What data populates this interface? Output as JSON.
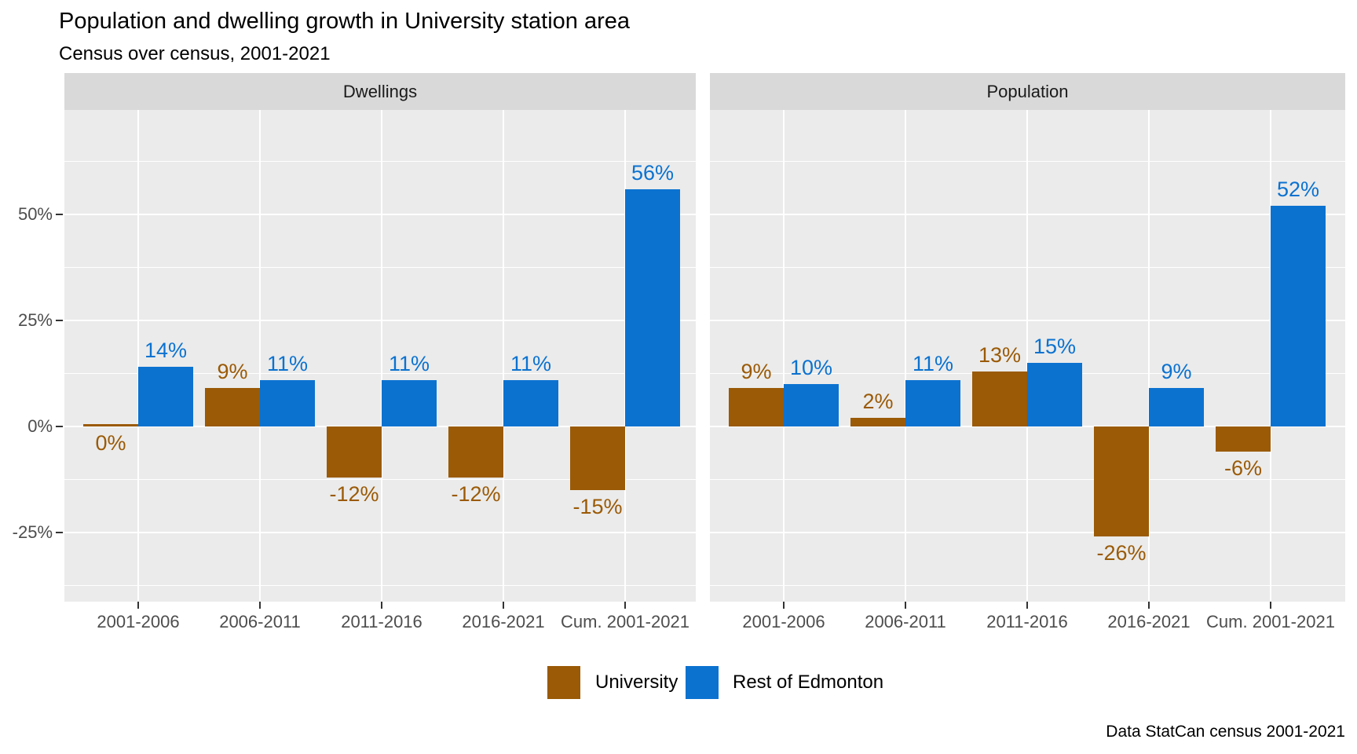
{
  "title": "Population and dwelling growth in University station area",
  "subtitle": "Census over census, 2001-2021",
  "caption": "Data StatCan census 2001-2021",
  "chart_data": {
    "type": "bar",
    "categories": [
      "2001-2006",
      "2006-2011",
      "2011-2016",
      "2016-2021",
      "Cum. 2001-2021"
    ],
    "facets": [
      {
        "label": "Dwellings",
        "series": [
          {
            "name": "University",
            "values": [
              0,
              9,
              -12,
              -12,
              -15
            ]
          },
          {
            "name": "Rest of Edmonton",
            "values": [
              14,
              11,
              11,
              11,
              56
            ]
          }
        ]
      },
      {
        "label": "Population",
        "series": [
          {
            "name": "University",
            "values": [
              9,
              2,
              13,
              -26,
              -6
            ]
          },
          {
            "name": "Rest of Edmonton",
            "values": [
              10,
              11,
              15,
              9,
              52
            ]
          }
        ]
      }
    ],
    "value_label_format": "percent",
    "y_axis": {
      "major_ticks": [
        {
          "label": "50%",
          "value": 50
        },
        {
          "label": "25%",
          "value": 25
        },
        {
          "label": "0%",
          "value": 0
        },
        {
          "label": "-25%",
          "value": -25
        }
      ],
      "minor_tick_values": [
        62.5,
        37.5,
        12.5,
        -12.5,
        -37.5
      ],
      "grid": true
    },
    "legend": [
      {
        "label": "University",
        "color": "#9A5A06"
      },
      {
        "label": "Rest of Edmonton",
        "color": "#0B72D0"
      }
    ],
    "colors": {
      "university": "#9A5A06",
      "rest_of_edmonton": "#0B72D0",
      "panel_background": "#EBEBEB",
      "strip_background": "#D9D9D9",
      "gridline": "#FFFFFF",
      "axis_text": "#4D4D4D"
    },
    "legend_position": "bottom"
  }
}
